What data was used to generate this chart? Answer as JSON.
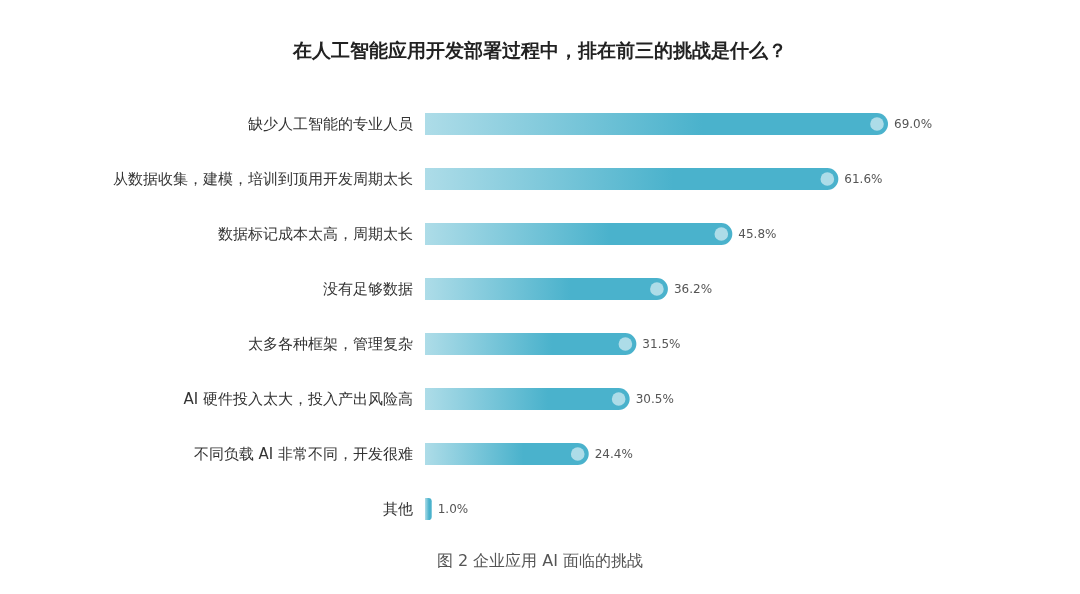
{
  "chart_data": {
    "type": "bar",
    "orientation": "horizontal",
    "title": "在人工智能应用开发部署过程中，排在前三的挑战是什么？",
    "categories": [
      "缺少人工智能的专业人员",
      "从数据收集，建模，培训到顶用开发周期太长",
      "数据标记成本太高，周期太长",
      "没有足够数据",
      "太多各种框架，管理复杂",
      "AI 硬件投入太大，投入产出风险高",
      "不同负载 AI 非常不同，开发很难",
      "其他"
    ],
    "values": [
      69.0,
      61.6,
      45.8,
      36.2,
      31.5,
      30.5,
      24.4,
      1.0
    ],
    "value_labels": [
      "69.0%",
      "61.6%",
      "45.8%",
      "36.2%",
      "31.5%",
      "30.5%",
      "24.4%",
      "1.0%"
    ],
    "color": "#4ab2cc",
    "tick_labels": "y",
    "annotations": [
      "图 2 企业应用 AI 面临的挑战"
    ]
  }
}
